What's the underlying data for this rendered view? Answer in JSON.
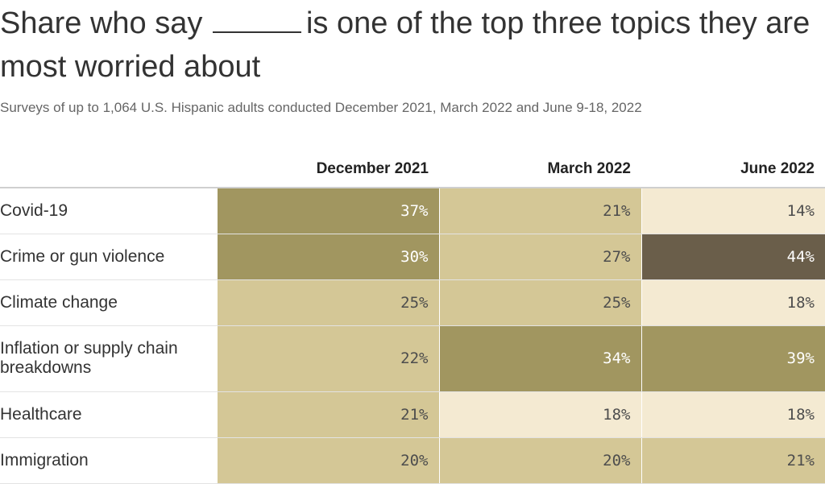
{
  "title_before": "Share who say",
  "title_after": "is one of the top three topics they are most worried about",
  "subtitle": "Surveys of up to 1,064 U.S. Hispanic adults conducted December 2021, March 2022 and June 9-18, 2022",
  "colors": {
    "pale": "#f4ead2",
    "light": "#d4c796",
    "medium": "#a19660",
    "dark": "#6a5e4a",
    "text_dark_cell": "#4d4d4d",
    "text_light_cell": "#ffffff"
  },
  "chart_data": {
    "type": "table",
    "columns": [
      "December 2021",
      "March 2022",
      "June 2022"
    ],
    "rows": [
      {
        "label": "Covid-19",
        "values": [
          "37%",
          "21%",
          "14%"
        ],
        "numeric": [
          37,
          21,
          14
        ]
      },
      {
        "label": "Crime or gun violence",
        "values": [
          "30%",
          "27%",
          "44%"
        ],
        "numeric": [
          30,
          27,
          44
        ]
      },
      {
        "label": "Climate change",
        "values": [
          "25%",
          "25%",
          "18%"
        ],
        "numeric": [
          25,
          25,
          18
        ]
      },
      {
        "label": "Inflation or supply chain breakdowns",
        "values": [
          "22%",
          "34%",
          "39%"
        ],
        "numeric": [
          22,
          34,
          39
        ]
      },
      {
        "label": "Healthcare",
        "values": [
          "21%",
          "18%",
          "18%"
        ],
        "numeric": [
          21,
          18,
          18
        ]
      },
      {
        "label": "Immigration",
        "values": [
          "20%",
          "20%",
          "21%"
        ],
        "numeric": [
          20,
          20,
          21
        ]
      }
    ]
  }
}
